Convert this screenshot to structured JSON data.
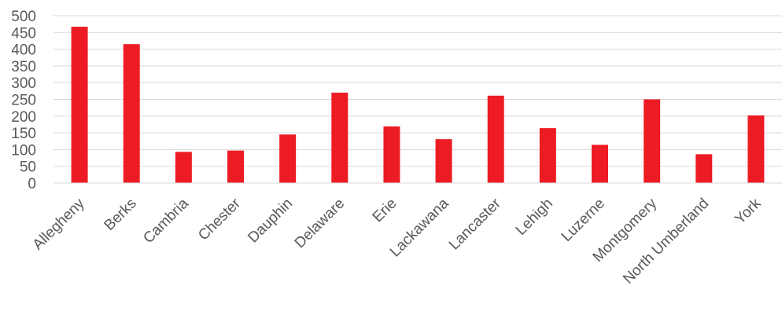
{
  "chart_data": {
    "type": "bar",
    "categories": [
      "Allegheny",
      "Berks",
      "Cambria",
      "Chester",
      "Dauphin",
      "Delaware",
      "Erie",
      "Lackawana",
      "Lancaster",
      "Lehigh",
      "Luzerne",
      "Montgomery",
      "North Umberland",
      "York"
    ],
    "values": [
      467,
      415,
      93,
      97,
      145,
      270,
      169,
      131,
      261,
      164,
      114,
      250,
      86,
      202
    ],
    "ylim": [
      0,
      500
    ],
    "yticks": [
      0,
      50,
      100,
      150,
      200,
      250,
      300,
      350,
      400,
      450,
      500
    ],
    "grid": true,
    "legend": "none",
    "bar_color": "#ed1c24"
  }
}
